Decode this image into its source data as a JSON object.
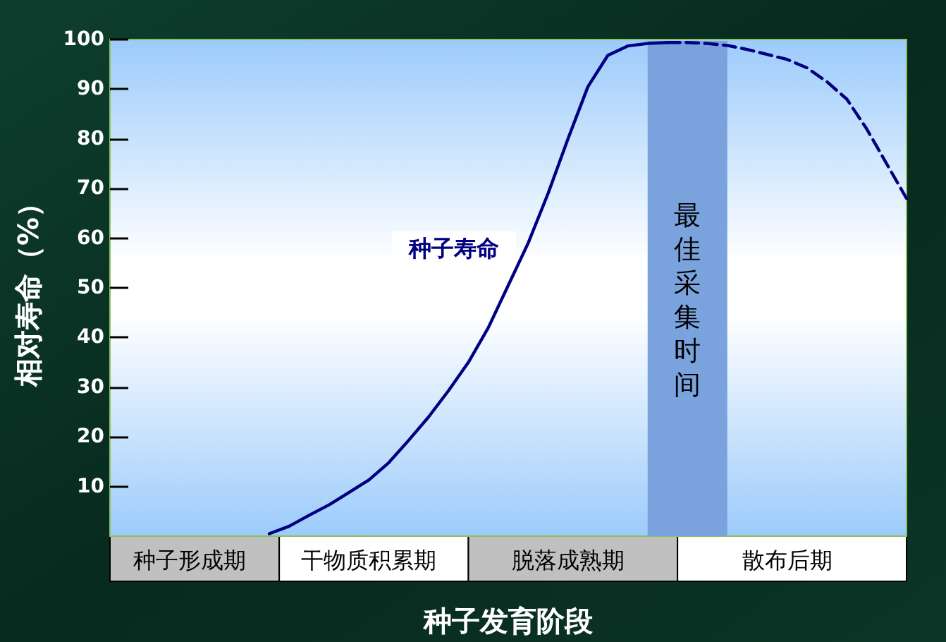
{
  "chart_data": {
    "type": "line",
    "xlabel": "种子发育阶段",
    "ylabel": "相对寿命（%）",
    "categories": [
      null,
      null,
      null,
      null,
      "种子形成期",
      null,
      null,
      null,
      null,
      null,
      null,
      null,
      null,
      "干物质积累期",
      null,
      null,
      null,
      null,
      null,
      null,
      null,
      null,
      null,
      "脱落成熟期",
      null,
      null,
      null,
      null,
      null,
      null,
      null,
      null,
      null,
      null,
      "散布后期",
      null,
      null,
      null,
      null,
      null,
      null
    ],
    "ylim": [
      0,
      100
    ],
    "yticks": [
      10,
      20,
      30,
      40,
      50,
      60,
      70,
      80,
      90,
      100
    ],
    "grid": false,
    "marker": "none",
    "series": [
      {
        "color": "#000080",
        "line_style": "solid",
        "values": [
          null,
          null,
          null,
          null,
          null,
          null,
          null,
          null,
          0.5,
          2,
          4.2,
          6.3,
          8.8,
          11.3,
          14.8,
          19.3,
          24,
          29.3,
          35,
          42,
          50.5,
          59,
          69,
          80,
          90.5,
          96.8,
          98.7,
          99.2,
          99.4,
          null,
          null,
          null,
          null,
          null,
          null,
          null,
          null,
          null,
          null,
          null,
          null
        ]
      },
      {
        "color": "#000080",
        "line_style": "dashed",
        "values": [
          null,
          null,
          null,
          null,
          null,
          null,
          null,
          null,
          null,
          null,
          null,
          null,
          null,
          null,
          null,
          null,
          null,
          null,
          null,
          null,
          null,
          null,
          null,
          null,
          null,
          null,
          null,
          null,
          99.4,
          99.4,
          99.2,
          98.8,
          98,
          97,
          96,
          94.3,
          91.5,
          88,
          82,
          75,
          68
        ]
      }
    ],
    "annotations": [
      "种子寿命",
      "最佳采集时间"
    ]
  }
}
